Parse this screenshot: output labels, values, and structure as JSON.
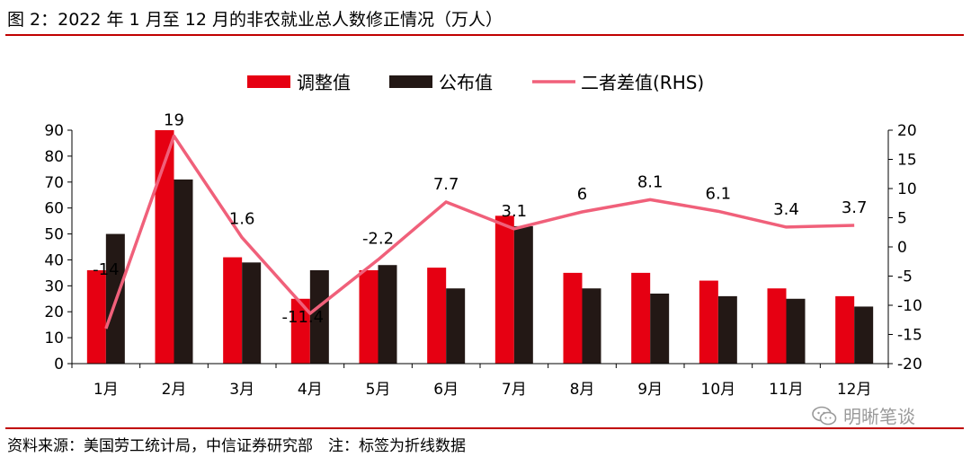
{
  "title": "图 2：2022 年 1 月至 12 月的非农就业总人数修正情况（万人）",
  "source": "资料来源：美国劳工统计局，中信证券研究部　注：标签为折线数据",
  "watermark": "明晰笔谈",
  "colors": {
    "adjusted": "#e60012",
    "published": "#231815",
    "diff": "#f0607a",
    "rule": "#c00000"
  },
  "chart_data": {
    "type": "bar",
    "categories": [
      "1月",
      "2月",
      "3月",
      "4月",
      "5月",
      "6月",
      "7月",
      "8月",
      "9月",
      "10月",
      "11月",
      "12月"
    ],
    "series": [
      {
        "name": "调整值",
        "type": "bar",
        "axis": "left",
        "values": [
          36,
          90,
          41,
          25,
          36,
          37,
          57,
          35,
          35,
          32,
          29,
          26
        ]
      },
      {
        "name": "公布值",
        "type": "bar",
        "axis": "left",
        "values": [
          50,
          71,
          39,
          36,
          38,
          29,
          53,
          29,
          27,
          26,
          25,
          22
        ]
      },
      {
        "name": "二者差值(RHS)",
        "type": "line",
        "axis": "right",
        "values": [
          -14,
          19,
          1.6,
          -11.4,
          -2.2,
          7.7,
          3.1,
          6,
          8.1,
          6.1,
          3.4,
          3.7
        ]
      }
    ],
    "data_labels": [
      "-14",
      "19",
      "1.6",
      "-11.4",
      "-2.2",
      "7.7",
      "3.1",
      "6",
      "8.1",
      "6.1",
      "3.4",
      "3.7"
    ],
    "left_axis": {
      "ylim": [
        0,
        90
      ],
      "ticks": [
        "0",
        "10",
        "20",
        "30",
        "40",
        "50",
        "60",
        "70",
        "80",
        "90"
      ]
    },
    "right_axis": {
      "ylim": [
        -20,
        20
      ],
      "ticks": [
        "-20",
        "-15",
        "-10",
        "-5",
        "0",
        "5",
        "10",
        "15",
        "20"
      ]
    },
    "legend": [
      "调整值",
      "公布值",
      "二者差值(RHS)"
    ],
    "legend_position": "top-center",
    "grid": false
  }
}
